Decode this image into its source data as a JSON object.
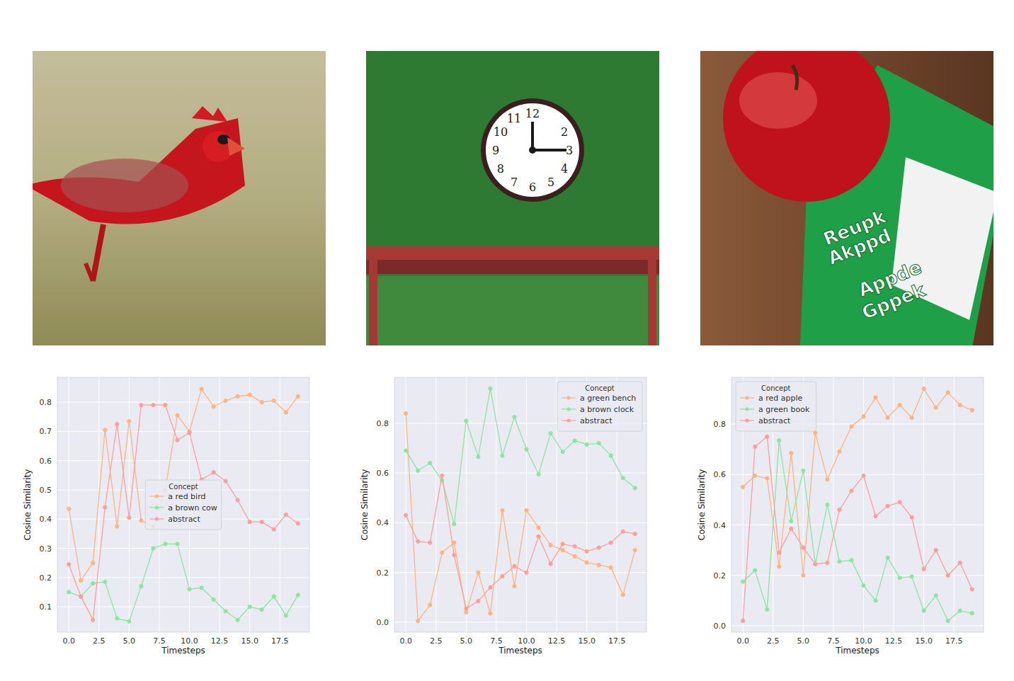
{
  "photos": {
    "clock": {
      "numerals": [
        "12",
        null,
        "2",
        "3",
        "4",
        "5",
        "6",
        "7",
        "8",
        "9",
        "10",
        "11"
      ]
    },
    "book": {
      "texts": [
        "Reupk",
        "Akppd",
        "Appde",
        "Gppek"
      ]
    }
  },
  "chart_data": [
    {
      "type": "line",
      "xlabel": "Timesteps",
      "ylabel": "Cosine Similarity",
      "legend_title": "Concept",
      "legend": "center",
      "grid": true,
      "marker": "o",
      "line_style": "solid",
      "x": [
        0,
        1,
        2,
        3,
        4,
        5,
        6,
        7,
        8,
        9,
        10,
        11,
        12,
        13,
        14,
        15,
        16,
        17,
        18,
        19
      ],
      "xlim": [
        -0.95,
        19.95
      ],
      "xticks": [
        {
          "value": 0,
          "label": "0.0"
        },
        2.5,
        {
          "value": 5,
          "label": "5.0"
        },
        7.5,
        {
          "value": 10,
          "label": "10.0"
        },
        12.5,
        {
          "value": 15,
          "label": "15.0"
        },
        17.5
      ],
      "ylim": [
        0.013,
        0.885
      ],
      "yticks": [
        0.1,
        0.2,
        0.3,
        0.4,
        0.5,
        0.6,
        0.7,
        0.8
      ],
      "series": [
        {
          "name": "a red bird",
          "color": "#ffb482",
          "values": [
            0.435,
            0.19,
            0.25,
            0.705,
            0.375,
            0.735,
            0.395,
            0.375,
            0.5,
            0.755,
            0.7,
            0.845,
            0.785,
            0.805,
            0.82,
            0.825,
            0.8,
            0.805,
            0.765,
            0.82
          ]
        },
        {
          "name": "a brown cow",
          "color": "#8de5a1",
          "values": [
            0.15,
            0.135,
            0.18,
            0.185,
            0.06,
            0.05,
            0.17,
            0.3,
            0.315,
            0.315,
            0.16,
            0.165,
            0.125,
            0.085,
            0.055,
            0.1,
            0.09,
            0.135,
            0.07,
            0.14
          ]
        },
        {
          "name": "abstract",
          "color": "#ff9f9b",
          "values": [
            0.245,
            0.135,
            0.055,
            0.44,
            0.725,
            0.405,
            0.79,
            0.79,
            0.79,
            0.67,
            0.695,
            0.535,
            0.56,
            0.53,
            0.465,
            0.39,
            0.39,
            0.365,
            0.415,
            0.385
          ]
        }
      ]
    },
    {
      "type": "line",
      "xlabel": "Timesteps",
      "ylabel": "Cosine Similarity",
      "legend_title": "Concept",
      "legend": "upper right",
      "grid": true,
      "marker": "o",
      "line_style": "solid",
      "x": [
        0,
        1,
        2,
        3,
        4,
        5,
        6,
        7,
        8,
        9,
        10,
        11,
        12,
        13,
        14,
        15,
        16,
        17,
        18,
        19
      ],
      "xlim": [
        -0.95,
        19.95
      ],
      "xticks": [
        {
          "value": 0,
          "label": "0.0"
        },
        2.5,
        {
          "value": 5,
          "label": "5.0"
        },
        7.5,
        {
          "value": 10,
          "label": "10.0"
        },
        12.5,
        {
          "value": 15,
          "label": "15.0"
        },
        17.5
      ],
      "ylim": [
        -0.04,
        0.985
      ],
      "yticks": [
        {
          "value": 0,
          "label": "0.0"
        },
        0.2,
        0.4,
        0.6,
        0.8
      ],
      "series": [
        {
          "name": "a green bench",
          "color": "#ffb482",
          "values": [
            0.84,
            0.005,
            0.07,
            0.28,
            0.32,
            0.04,
            0.2,
            0.035,
            0.45,
            0.145,
            0.45,
            0.38,
            0.31,
            0.29,
            0.265,
            0.24,
            0.23,
            0.22,
            0.11,
            0.29
          ]
        },
        {
          "name": "a brown clock",
          "color": "#8de5a1",
          "values": [
            0.69,
            0.61,
            0.64,
            0.57,
            0.395,
            0.81,
            0.665,
            0.94,
            0.67,
            0.825,
            0.695,
            0.595,
            0.76,
            0.685,
            0.73,
            0.715,
            0.72,
            0.67,
            0.58,
            0.54
          ]
        },
        {
          "name": "abstract",
          "color": "#ff9f9b",
          "values": [
            0.43,
            0.325,
            0.32,
            0.59,
            0.27,
            0.055,
            0.085,
            0.14,
            0.185,
            0.225,
            0.2,
            0.345,
            0.235,
            0.315,
            0.305,
            0.285,
            0.3,
            0.32,
            0.365,
            0.355
          ]
        }
      ]
    },
    {
      "type": "line",
      "xlabel": "Timesteps",
      "ylabel": "Cosine Similarity",
      "legend_title": "Concept",
      "legend": "upper left",
      "grid": true,
      "marker": "o",
      "line_style": "solid",
      "x": [
        0,
        1,
        2,
        3,
        4,
        5,
        6,
        7,
        8,
        9,
        10,
        11,
        12,
        13,
        14,
        15,
        16,
        17,
        18,
        19
      ],
      "xlim": [
        -0.95,
        19.95
      ],
      "xticks": [
        {
          "value": 0,
          "label": "0.0"
        },
        2.5,
        {
          "value": 5,
          "label": "5.0"
        },
        7.5,
        {
          "value": 10,
          "label": "10.0"
        },
        12.5,
        {
          "value": 15,
          "label": "15.0"
        },
        17.5
      ],
      "ylim": [
        -0.025,
        0.985
      ],
      "yticks": [
        {
          "value": 0,
          "label": "0.0"
        },
        0.2,
        0.4,
        0.6,
        0.8
      ],
      "series": [
        {
          "name": "a red apple",
          "color": "#ffb482",
          "values": [
            0.55,
            0.595,
            0.585,
            0.235,
            0.685,
            0.2,
            0.765,
            0.58,
            0.69,
            0.79,
            0.83,
            0.905,
            0.825,
            0.875,
            0.825,
            0.94,
            0.865,
            0.925,
            0.875,
            0.855
          ]
        },
        {
          "name": "a green book",
          "color": "#8de5a1",
          "values": [
            0.175,
            0.22,
            0.065,
            0.735,
            0.415,
            0.615,
            0.245,
            0.48,
            0.255,
            0.26,
            0.16,
            0.1,
            0.27,
            0.19,
            0.195,
            0.06,
            0.12,
            0.02,
            0.06,
            0.05
          ]
        },
        {
          "name": "abstract",
          "color": "#ff9f9b",
          "values": [
            0.02,
            0.71,
            0.75,
            0.29,
            0.385,
            0.31,
            0.245,
            0.25,
            0.46,
            0.535,
            0.595,
            0.435,
            0.475,
            0.49,
            0.43,
            0.225,
            0.3,
            0.2,
            0.25,
            0.145
          ]
        }
      ]
    }
  ]
}
